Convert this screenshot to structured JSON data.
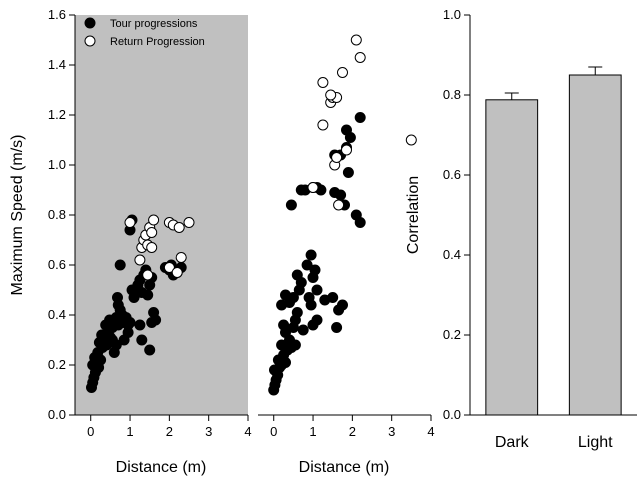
{
  "chart_data": [
    {
      "type": "scatter",
      "ylabel": "Maximum Speed (m/s)",
      "xlabel": "Distance (m)",
      "xlim": [
        -0.4,
        4
      ],
      "ylim": [
        0,
        1.6
      ],
      "xticks": [
        "0",
        "1",
        "2",
        "3",
        "4"
      ],
      "yticks": [
        "0.0",
        "0.2",
        "0.4",
        "0.6",
        "0.8",
        "1.0",
        "1.2",
        "1.4",
        "1.6"
      ],
      "background": "#c0c0c0",
      "legend": {
        "placement": "top-left"
      },
      "series": [
        {
          "name": "Tour progressions",
          "marker": "filled",
          "color": "#000000",
          "points": [
            [
              0.02,
              0.11
            ],
            [
              0.05,
              0.13
            ],
            [
              0.08,
              0.15
            ],
            [
              0.12,
              0.17
            ],
            [
              0.05,
              0.2
            ],
            [
              0.15,
              0.21
            ],
            [
              0.2,
              0.19
            ],
            [
              0.1,
              0.23
            ],
            [
              0.18,
              0.25
            ],
            [
              0.25,
              0.22
            ],
            [
              0.3,
              0.27
            ],
            [
              0.22,
              0.29
            ],
            [
              0.35,
              0.3
            ],
            [
              0.4,
              0.28
            ],
            [
              0.28,
              0.32
            ],
            [
              0.45,
              0.33
            ],
            [
              0.5,
              0.31
            ],
            [
              0.38,
              0.36
            ],
            [
              0.55,
              0.35
            ],
            [
              0.6,
              0.37
            ],
            [
              0.48,
              0.38
            ],
            [
              0.65,
              0.39
            ],
            [
              0.7,
              0.36
            ],
            [
              0.75,
              0.38
            ],
            [
              0.8,
              0.4
            ],
            [
              0.85,
              0.37
            ],
            [
              0.9,
              0.39
            ],
            [
              0.95,
              0.36
            ],
            [
              1.0,
              0.37
            ],
            [
              0.6,
              0.25
            ],
            [
              0.65,
              0.28
            ],
            [
              0.55,
              0.3
            ],
            [
              0.7,
              0.44
            ],
            [
              0.68,
              0.47
            ],
            [
              0.75,
              0.42
            ],
            [
              1.05,
              0.5
            ],
            [
              1.1,
              0.47
            ],
            [
              1.2,
              0.52
            ],
            [
              1.25,
              0.54
            ],
            [
              1.3,
              0.49
            ],
            [
              1.35,
              0.56
            ],
            [
              1.4,
              0.58
            ],
            [
              1.45,
              0.48
            ],
            [
              1.5,
              0.52
            ],
            [
              1.55,
              0.55
            ],
            [
              1.6,
              0.41
            ],
            [
              1.65,
              0.38
            ],
            [
              1.55,
              0.37
            ],
            [
              1.3,
              0.3
            ],
            [
              1.5,
              0.26
            ],
            [
              0.75,
              0.6
            ],
            [
              1.0,
              0.74
            ],
            [
              1.05,
              0.78
            ],
            [
              1.9,
              0.59
            ],
            [
              2.0,
              0.58
            ],
            [
              2.1,
              0.56
            ],
            [
              2.2,
              0.57
            ],
            [
              2.3,
              0.59
            ],
            [
              2.05,
              0.6
            ],
            [
              1.25,
              0.36
            ],
            [
              0.85,
              0.3
            ],
            [
              0.95,
              0.33
            ]
          ]
        },
        {
          "name": "Return Progression",
          "marker": "open",
          "color": "#ffffff",
          "points": [
            [
              1.0,
              0.77
            ],
            [
              1.25,
              0.62
            ],
            [
              1.3,
              0.67
            ],
            [
              1.35,
              0.7
            ],
            [
              1.4,
              0.72
            ],
            [
              1.45,
              0.68
            ],
            [
              1.5,
              0.75
            ],
            [
              1.55,
              0.73
            ],
            [
              1.6,
              0.78
            ],
            [
              1.45,
              0.56
            ],
            [
              1.55,
              0.67
            ],
            [
              2.0,
              0.77
            ],
            [
              2.1,
              0.76
            ],
            [
              2.25,
              0.75
            ],
            [
              2.5,
              0.77
            ],
            [
              2.0,
              0.59
            ],
            [
              2.3,
              0.63
            ],
            [
              2.2,
              0.57
            ]
          ]
        }
      ]
    },
    {
      "type": "scatter",
      "xlabel": "Distance (m)",
      "xlim": [
        -0.4,
        4
      ],
      "ylim": [
        0,
        1.6
      ],
      "xticks": [
        "0",
        "1",
        "2",
        "3",
        "4"
      ],
      "series": [
        {
          "name": "Tour progressions",
          "marker": "filled",
          "color": "#000000",
          "points": [
            [
              0.0,
              0.1
            ],
            [
              0.03,
              0.12
            ],
            [
              0.06,
              0.14
            ],
            [
              0.1,
              0.16
            ],
            [
              0.02,
              0.18
            ],
            [
              0.15,
              0.19
            ],
            [
              0.2,
              0.2
            ],
            [
              0.12,
              0.22
            ],
            [
              0.25,
              0.24
            ],
            [
              0.3,
              0.21
            ],
            [
              0.35,
              0.26
            ],
            [
              0.2,
              0.28
            ],
            [
              0.4,
              0.3
            ],
            [
              0.45,
              0.27
            ],
            [
              0.3,
              0.33
            ],
            [
              0.5,
              0.35
            ],
            [
              0.55,
              0.38
            ],
            [
              0.6,
              0.41
            ],
            [
              0.4,
              0.45
            ],
            [
              0.5,
              0.47
            ],
            [
              0.3,
              0.48
            ],
            [
              0.65,
              0.5
            ],
            [
              0.7,
              0.53
            ],
            [
              0.6,
              0.56
            ],
            [
              0.2,
              0.44
            ],
            [
              0.25,
              0.36
            ],
            [
              0.85,
              0.6
            ],
            [
              0.95,
              0.64
            ],
            [
              1.0,
              0.55
            ],
            [
              1.05,
              0.58
            ],
            [
              1.1,
              0.5
            ],
            [
              0.9,
              0.47
            ],
            [
              1.3,
              0.46
            ],
            [
              1.1,
              0.38
            ],
            [
              1.0,
              0.36
            ],
            [
              1.6,
              0.35
            ],
            [
              1.65,
              0.42
            ],
            [
              1.5,
              0.47
            ],
            [
              1.75,
              0.44
            ],
            [
              0.45,
              0.84
            ],
            [
              0.7,
              0.9
            ],
            [
              0.8,
              0.9
            ],
            [
              1.0,
              0.91
            ],
            [
              1.1,
              0.91
            ],
            [
              1.2,
              0.9
            ],
            [
              1.55,
              0.89
            ],
            [
              1.7,
              0.88
            ],
            [
              1.8,
              0.84
            ],
            [
              2.1,
              0.8
            ],
            [
              2.2,
              0.77
            ],
            [
              1.9,
              0.97
            ],
            [
              1.55,
              1.04
            ],
            [
              1.7,
              1.04
            ],
            [
              1.85,
              1.07
            ],
            [
              1.95,
              1.11
            ],
            [
              1.85,
              1.14
            ],
            [
              2.2,
              1.19
            ],
            [
              0.55,
              0.28
            ],
            [
              0.75,
              0.34
            ],
            [
              0.95,
              0.44
            ]
          ]
        },
        {
          "name": "Return Progression",
          "marker": "open",
          "color": "#ffffff",
          "points": [
            [
              1.0,
              0.91
            ],
            [
              1.65,
              0.84
            ],
            [
              1.85,
              1.06
            ],
            [
              1.55,
              1.0
            ],
            [
              1.6,
              1.03
            ],
            [
              1.25,
              1.16
            ],
            [
              1.25,
              1.33
            ],
            [
              1.45,
              1.25
            ],
            [
              1.5,
              1.27
            ],
            [
              1.6,
              1.27
            ],
            [
              1.75,
              1.37
            ],
            [
              2.1,
              1.5
            ],
            [
              2.2,
              1.43
            ],
            [
              3.5,
              1.1
            ],
            [
              1.45,
              1.28
            ]
          ]
        }
      ]
    },
    {
      "type": "bar",
      "ylabel": "Correlation",
      "ylim": [
        0,
        1.0
      ],
      "yticks": [
        "0.0",
        "0.2",
        "0.4",
        "0.6",
        "0.8",
        "1.0"
      ],
      "categories": [
        "Dark",
        "Light"
      ],
      "values": [
        0.788,
        0.85
      ],
      "errors": [
        0.017,
        0.02
      ],
      "bar_color": "#c0c0c0"
    }
  ]
}
